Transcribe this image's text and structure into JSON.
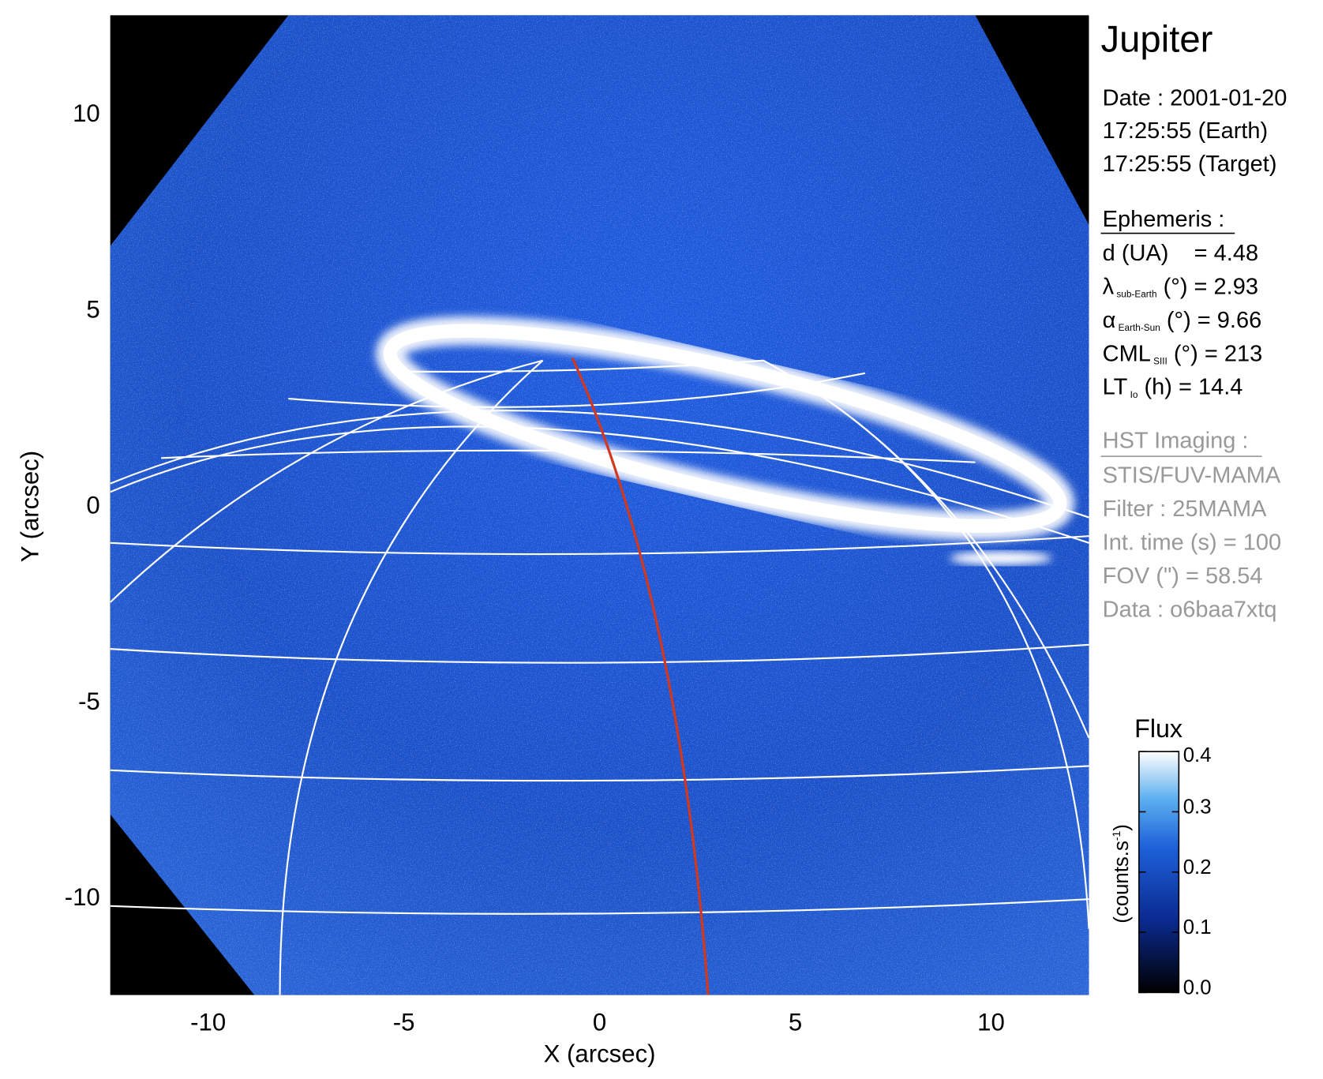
{
  "chart_data": {
    "type": "image",
    "xlabel": "X (arcsec)",
    "ylabel": "Y (arcsec)",
    "xlim": [
      -12.5,
      12.5
    ],
    "ylim": [
      -12.5,
      12.5
    ],
    "xticks": [
      -10,
      -5,
      0,
      5,
      10
    ],
    "yticks": [
      -10,
      -5,
      0,
      5,
      10
    ],
    "colorbar": {
      "title": "Flux",
      "unit": {
        "main": "(counts.s",
        "sup": "-1",
        "end": ")"
      },
      "clim": [
        0,
        0.4
      ],
      "ticks": [
        {
          "value": 0,
          "label": "0.0"
        },
        0.1,
        0.2,
        0.3,
        0.4
      ]
    },
    "info": {
      "target": "Jupiter",
      "date": [
        "Date : 2001-01-20",
        "17:25:55 (Earth)",
        "17:25:55 (Target)"
      ],
      "ephemeris_title": "Ephemeris :",
      "ephemeris": [
        {
          "main": "d (UA)    = 4.48"
        },
        {
          "main": "λ",
          "sub": "sub-Earth",
          "rest": " (°) = 2.93"
        },
        {
          "main": "α",
          "sub": "Earth-Sun",
          "rest": " (°) = 9.66"
        },
        {
          "main": "CML",
          "sub": "SIII",
          "rest": " (°) = 213"
        },
        {
          "main": "LT",
          "sub": "Io",
          "rest": " (h) = 14.4"
        }
      ],
      "imaging_title": "HST Imaging :",
      "imaging": [
        "STIS/FUV-MAMA",
        "Filter : 25MAMA",
        "Int. time (s) = 100",
        "FOV (\") = 58.54",
        "Data : o6baa7xtq"
      ]
    }
  }
}
